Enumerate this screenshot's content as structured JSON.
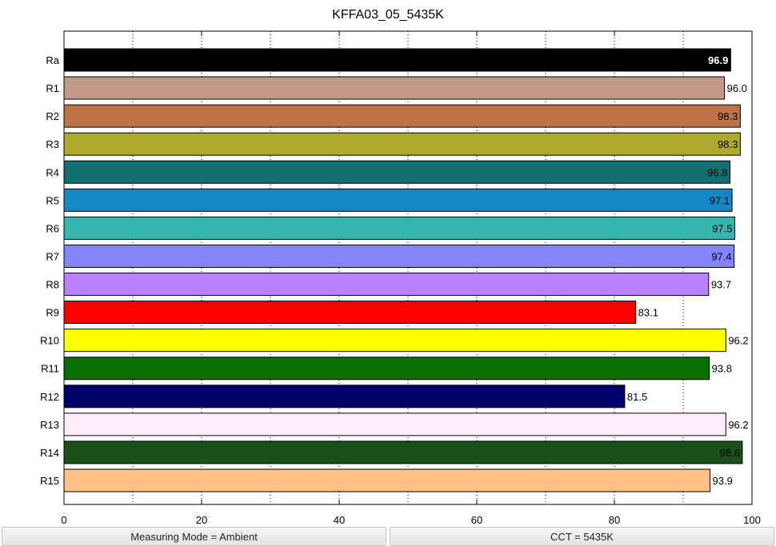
{
  "chart_data": {
    "type": "bar",
    "orientation": "horizontal",
    "title": "KFFA03_05_5435K",
    "xlabel": "",
    "ylabel": "",
    "xlim": [
      0,
      100
    ],
    "xticks": [
      "0",
      "20",
      "40",
      "60",
      "80",
      "100"
    ],
    "grid": "vertical dotted at every 10",
    "categories": [
      "Ra",
      "R1",
      "R2",
      "R3",
      "R4",
      "R5",
      "R6",
      "R7",
      "R8",
      "R9",
      "R10",
      "R11",
      "R12",
      "R13",
      "R14",
      "R15"
    ],
    "values": [
      96.9,
      96.0,
      98.3,
      98.3,
      96.8,
      97.1,
      97.5,
      97.4,
      93.7,
      83.1,
      96.2,
      93.8,
      81.5,
      96.2,
      98.6,
      93.9
    ],
    "labels": [
      "96.9",
      "96.0",
      "98.3",
      "98.3",
      "96.8",
      "97.1",
      "97.5",
      "97.4",
      "93.7",
      "83.1",
      "96.2",
      "93.8",
      "81.5",
      "96.2",
      "98.6",
      "93.9"
    ],
    "colors": [
      "#000000",
      "#c39a88",
      "#bd7345",
      "#aeaa2b",
      "#117170",
      "#1388c6",
      "#36b6ae",
      "#8583fd",
      "#bb80ff",
      "#ff0000",
      "#ffff00",
      "#097000",
      "#00006b",
      "#ffeefa",
      "#1b5118",
      "#ffc185"
    ],
    "label_colors": [
      "#ffffff",
      "#000000",
      "#000000",
      "#000000",
      "#000000",
      "#000000",
      "#000000",
      "#000000",
      "#000000",
      "#000000",
      "#000000",
      "#000000",
      "#000000",
      "#000000",
      "#000000",
      "#000000"
    ],
    "label_inside": [
      true,
      false,
      true,
      true,
      true,
      true,
      true,
      true,
      false,
      false,
      false,
      false,
      false,
      false,
      true,
      false
    ]
  },
  "status": {
    "measuring_mode": "Measuring Mode = Ambient",
    "cct": "CCT = 5435K"
  }
}
